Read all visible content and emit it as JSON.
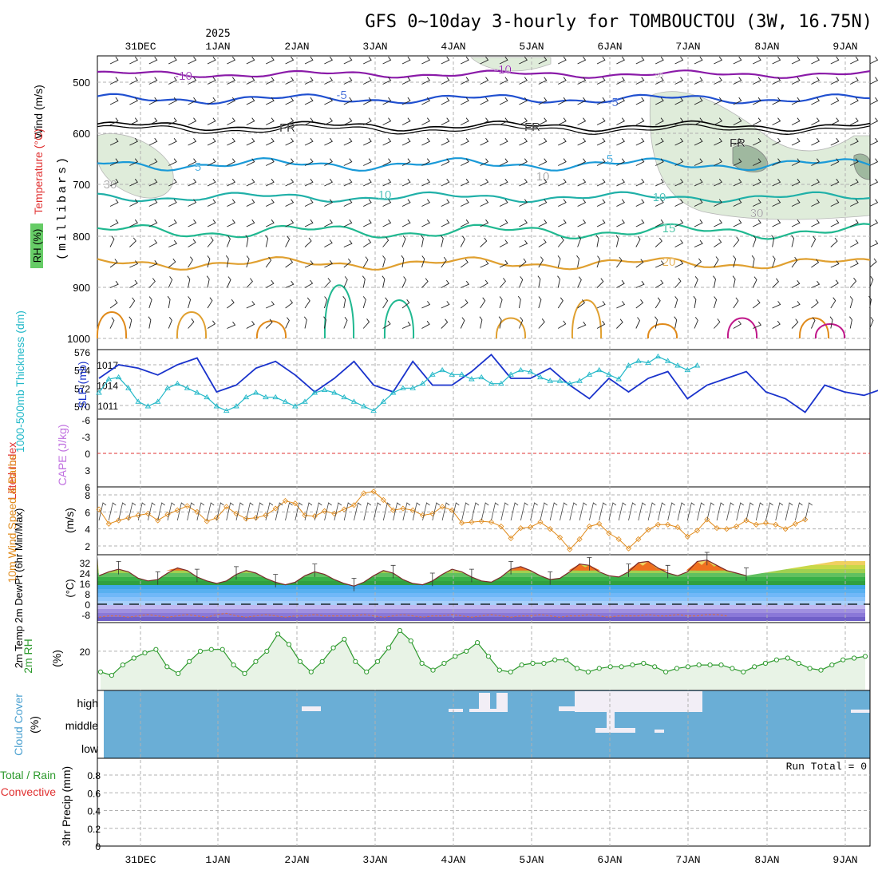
{
  "title": "GFS 0~10day 3-hourly for TOMBOUCTOU (3W, 16.75N)",
  "year_label": "2025",
  "dates": [
    "31DEC",
    "1JAN",
    "2JAN",
    "3JAN",
    "4JAN",
    "5JAN",
    "6JAN",
    "7JAN",
    "8JAN",
    "9JAN"
  ],
  "date_x": [
    176,
    273,
    372,
    470,
    568,
    666,
    764,
    862,
    961,
    1059
  ],
  "colors": {
    "panel_border": "#000000",
    "grid": "#b0b0b0",
    "cloud": "#6aaed6",
    "rh_fill": "#e8f3e6",
    "rh_line": "#2d9a2d",
    "temp_line": "#1f7fd0",
    "speed": "#e08a1a",
    "slp": "#1a33cc",
    "thick": "#22b8c8"
  },
  "panels": {
    "upper": {
      "ylabel_wind": "Wind (m/s)",
      "ylabel_temp": "Temperature (°C)",
      "ylabel_rh": "RH (%)",
      "ylabel_p": "(millibars)",
      "yticks": [
        "500",
        "600",
        "700",
        "800",
        "900",
        "1000"
      ],
      "contour_labels": [
        "-10",
        "-10",
        "-5",
        "-5",
        "5",
        "5",
        "10",
        "10",
        "15",
        "20",
        "FR",
        "FR",
        "FR",
        "10",
        "30",
        "30",
        "30"
      ]
    },
    "slp": {
      "ylabel_thick": "1000-500mb Thickness (dm)",
      "ylabel_slp": "SLP (mb)",
      "yticks_left": [
        "576",
        "574",
        "572",
        "570"
      ],
      "yticks_right": [
        "1017",
        "1014",
        "1011"
      ]
    },
    "li": {
      "ylabel_li": "Lifted Index",
      "ylabel_cape": "CAPE (J/kg)",
      "yticks": [
        "-6",
        "-3",
        "0",
        "3",
        "6"
      ]
    },
    "wind10": {
      "ylabel": "10m Wind Speed & Barbs",
      "ylabel_unit": "(m/s)",
      "yticks": [
        "8",
        "6",
        "4",
        "2"
      ]
    },
    "temp2m": {
      "ylabel": "2m Temp 2m DewPt (6hr Min/Max)",
      "ylabel_unit": "(°C)",
      "yticks": [
        "32",
        "24",
        "16",
        "8",
        "0",
        "-8"
      ]
    },
    "rh2m": {
      "ylabel": "2m RH",
      "ylabel_unit": "(%)",
      "yticks": [
        "20"
      ]
    },
    "cloud": {
      "ylabel": "Cloud Cover",
      "ylabel_unit": "(%)",
      "levels": [
        "high",
        "middle",
        "low"
      ]
    },
    "precip": {
      "ylabel_total": "Total / Rain",
      "ylabel_conv": "Convective",
      "ylabel": "3hr Precip (mm)",
      "yticks": [
        "0.8",
        "0.6",
        "0.4",
        "0.2",
        "0"
      ],
      "run_total": "Run Total = 0"
    }
  },
  "chart_data": [
    {
      "type": "line",
      "title": "SLP",
      "unit": "mb",
      "x_step_hours": 6,
      "values": [
        1015,
        1017,
        1016.5,
        1015.5,
        1017,
        1018,
        1013,
        1014,
        1016.5,
        1017.5,
        1015.5,
        1013,
        1015,
        1017.5,
        1014,
        1013,
        1017.5,
        1014,
        1014,
        1016,
        1018.5,
        1015,
        1015,
        1016.5,
        1014,
        1012,
        1015,
        1013,
        1015,
        1016,
        1012,
        1014,
        1015,
        1016,
        1013,
        1012,
        1010,
        1014,
        1013,
        1012.5,
        1013.5,
        1010,
        1013,
        1012,
        1014,
        1010,
        1011,
        1011,
        1013,
        1010,
        1011.5,
        1012.5,
        1010.5,
        1011,
        1012,
        1013,
        1012,
        1010.5,
        1011.5,
        1010.8,
        1011.8
      ]
    },
    {
      "type": "line",
      "title": "1000-500mb Thickness",
      "unit": "dm",
      "x_step_hours": 3,
      "values": [
        571.5,
        573,
        573.2,
        572,
        570.5,
        570,
        570.5,
        572,
        572.5,
        572,
        571.5,
        571,
        570,
        569.5,
        570,
        571,
        571.5,
        571,
        571,
        570.5,
        570,
        570.5,
        571.5,
        571.8,
        571.5,
        571,
        570.5,
        570,
        569.5,
        570.5,
        571.5,
        572,
        572,
        572.5,
        573.5,
        574,
        573.5,
        573.5,
        573,
        573.2,
        572.5,
        572.5,
        573.5,
        574,
        573.8,
        573.2,
        572.8,
        572.8,
        572.5,
        572.8,
        573.5,
        574,
        573.5,
        573,
        574.5,
        575,
        574.8,
        575.5,
        575,
        574.5,
        574,
        574.5
      ]
    },
    {
      "type": "line",
      "title": "10m Wind Speed",
      "unit": "m/s",
      "x_step_hours": 3,
      "values": [
        6.3,
        4.6,
        5,
        5.3,
        5.6,
        5.8,
        5,
        5.7,
        6.2,
        6.7,
        6,
        4.9,
        5.3,
        6.6,
        5.8,
        5.2,
        5.3,
        5.6,
        6.4,
        7.3,
        7,
        5.6,
        5.5,
        6.1,
        5.8,
        6.3,
        6.8,
        8.2,
        8.4,
        7.4,
        6.2,
        6.4,
        6.2,
        5.6,
        5.8,
        6.6,
        6.2,
        4.7,
        4.8,
        4.9,
        4.8,
        4.3,
        2.9,
        4.1,
        4.2,
        4.8,
        4,
        3,
        1.6,
        2.8,
        4.3,
        4.6,
        3.5,
        2.8,
        1.7,
        2.8,
        3.9,
        4.5,
        4.5,
        4.2,
        3.1,
        3.8,
        5.1,
        4.1,
        4,
        4.3,
        5,
        4.5,
        4.7,
        4.5,
        4,
        4.6,
        5.1
      ]
    },
    {
      "type": "area",
      "title": "2m RH",
      "unit": "%",
      "x_step_hours": 3,
      "values": [
        8,
        6,
        12,
        16,
        19,
        21,
        11,
        7,
        14,
        20,
        21,
        21,
        12,
        7,
        14,
        20,
        30,
        24,
        14,
        8,
        14,
        22,
        27,
        14,
        8,
        14,
        22,
        32,
        26,
        13,
        9,
        13,
        17,
        20,
        25,
        17,
        9,
        8,
        12,
        13,
        13,
        15,
        15,
        10,
        8,
        10,
        11,
        11,
        12,
        13,
        11,
        8,
        10,
        11,
        12,
        12,
        12,
        10,
        8,
        11,
        13,
        15,
        16,
        13,
        10,
        9,
        12,
        15,
        16,
        17
      ]
    },
    {
      "type": "line",
      "title": "2m Temp",
      "unit": "°C",
      "x_step_hours": 3,
      "values": [
        22,
        25,
        27,
        25,
        20,
        18,
        19,
        24,
        28,
        26,
        21,
        18,
        16,
        18,
        23,
        26,
        24,
        20,
        17,
        15,
        17,
        22,
        25,
        23,
        19,
        16,
        14,
        17,
        22,
        26,
        24,
        19,
        16,
        15,
        18,
        23,
        27,
        25,
        21,
        18,
        17,
        21,
        27,
        29,
        26,
        22,
        19,
        20,
        25,
        31,
        30,
        25,
        22,
        21,
        25,
        32,
        33,
        28,
        24,
        22,
        25,
        33,
        34,
        30,
        26,
        24,
        22
      ]
    },
    {
      "type": "line",
      "title": "2m DewPt",
      "unit": "°C",
      "x_step_hours": 3,
      "values": [
        -10,
        -9,
        -9,
        -10,
        -9,
        -8,
        -9,
        -10,
        -9,
        -8,
        -9,
        -10,
        -8,
        -7,
        -9,
        -10,
        -9,
        -8,
        -9,
        -10,
        -9,
        -9,
        -8,
        -9,
        -9,
        -9,
        -9,
        -8,
        -9,
        -10,
        -9,
        -8,
        -9,
        -10,
        -9,
        -9,
        -8,
        -9,
        -10,
        -9,
        -8,
        -9,
        -10,
        -9,
        -9,
        -8,
        -9,
        -10,
        -9,
        -9,
        -8,
        -9,
        -10,
        -9,
        -9,
        -9,
        -8,
        -9,
        -9,
        -8,
        -9,
        -9,
        -8,
        -8,
        -9
      ]
    },
    {
      "type": "bar",
      "title": "3hr Precip",
      "unit": "mm",
      "values": [],
      "ylim": [
        0,
        1
      ]
    }
  ]
}
